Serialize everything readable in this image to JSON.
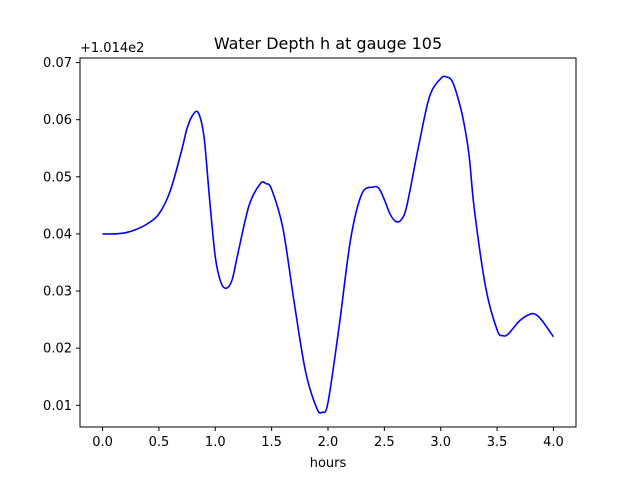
{
  "chart_data": {
    "type": "line",
    "title": "Water Depth h at gauge 105",
    "xlabel": "hours",
    "ylabel": "",
    "y_offset_label": "+1.014e2",
    "xlim": [
      -0.2,
      4.2
    ],
    "ylim": [
      0.0062,
      0.0708
    ],
    "grid": false,
    "x_ticks": [
      0.0,
      0.5,
      1.0,
      1.5,
      2.0,
      2.5,
      3.0,
      3.5,
      4.0
    ],
    "x_tick_labels": [
      "0.0",
      "0.5",
      "1.0",
      "1.5",
      "2.0",
      "2.5",
      "3.0",
      "3.5",
      "4.0"
    ],
    "y_ticks": [
      0.01,
      0.02,
      0.03,
      0.04,
      0.05,
      0.06,
      0.07
    ],
    "y_tick_labels": [
      "0.01",
      "0.02",
      "0.03",
      "0.04",
      "0.05",
      "0.06",
      "0.07"
    ],
    "series": [
      {
        "color": "#0000ff",
        "x": [
          0.0,
          0.1,
          0.2,
          0.3,
          0.4,
          0.5,
          0.6,
          0.7,
          0.75,
          0.8,
          0.85,
          0.9,
          0.95,
          1.0,
          1.05,
          1.1,
          1.15,
          1.2,
          1.3,
          1.4,
          1.45,
          1.5,
          1.6,
          1.7,
          1.8,
          1.9,
          1.95,
          2.0,
          2.1,
          2.2,
          2.3,
          2.4,
          2.45,
          2.5,
          2.55,
          2.6,
          2.65,
          2.7,
          2.8,
          2.9,
          3.0,
          3.05,
          3.1,
          3.15,
          3.2,
          3.25,
          3.3,
          3.4,
          3.5,
          3.55,
          3.6,
          3.7,
          3.8,
          3.85,
          3.9,
          4.0
        ],
        "y": [
          0.04,
          0.04,
          0.0402,
          0.0408,
          0.0418,
          0.0435,
          0.0475,
          0.0545,
          0.0585,
          0.0608,
          0.0612,
          0.057,
          0.046,
          0.036,
          0.0315,
          0.0305,
          0.032,
          0.0365,
          0.045,
          0.0488,
          0.0488,
          0.0478,
          0.041,
          0.028,
          0.016,
          0.0095,
          0.0088,
          0.0105,
          0.024,
          0.039,
          0.047,
          0.0482,
          0.048,
          0.046,
          0.0435,
          0.0422,
          0.0425,
          0.045,
          0.055,
          0.064,
          0.0672,
          0.0675,
          0.0668,
          0.064,
          0.06,
          0.054,
          0.044,
          0.0305,
          0.0232,
          0.0222,
          0.0225,
          0.0248,
          0.026,
          0.0258,
          0.0248,
          0.022
        ]
      }
    ]
  }
}
